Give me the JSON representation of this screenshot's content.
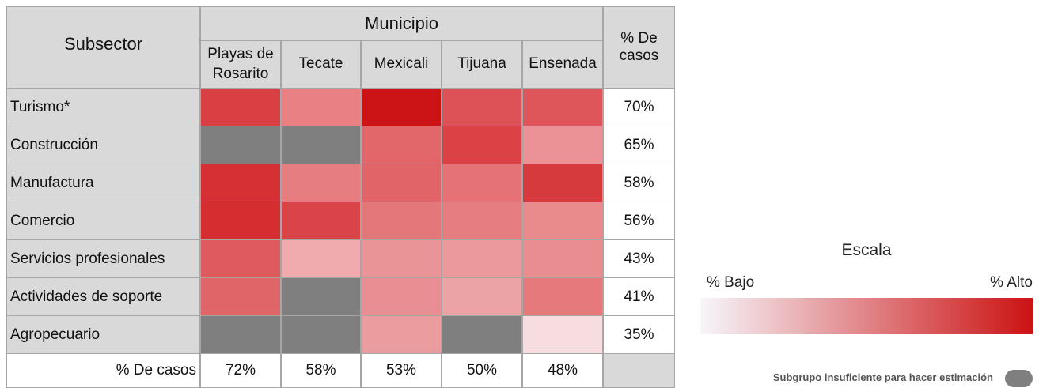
{
  "table": {
    "corner": "Subsector",
    "group_header": "Municipio",
    "total_header": "% De casos",
    "columns": [
      "Playas de Rosarito",
      "Tecate",
      "Mexicali",
      "Tijuana",
      "Ensenada"
    ],
    "rows": [
      {
        "label": "Turismo*",
        "colors": [
          "#d94044",
          "#e88084",
          "#cc1417",
          "#dc5257",
          "#de5659"
        ],
        "total": "70%"
      },
      {
        "label": "Construcción",
        "colors": [
          "#7f7f7f",
          "#7f7f7f",
          "#e2676b",
          "#da4246",
          "#ea9296"
        ],
        "total": "65%"
      },
      {
        "label": "Manufactura",
        "colors": [
          "#d63034",
          "#e67d80",
          "#e06468",
          "#e47276",
          "#d73a3d"
        ],
        "total": "58%"
      },
      {
        "label": "Comercio",
        "colors": [
          "#d62d31",
          "#da4347",
          "#e3777a",
          "#e67d80",
          "#e98a8c"
        ],
        "total": "56%"
      },
      {
        "label": "Servicios profesionales",
        "colors": [
          "#df5a5e",
          "#f0abae",
          "#e99497",
          "#ea999c",
          "#e98d90"
        ],
        "total": "43%"
      },
      {
        "label": "Actividades de soporte",
        "colors": [
          "#e06569",
          "#7f7f7f",
          "#e98e92",
          "#eca3a6",
          "#e5797c"
        ],
        "total": "41%"
      },
      {
        "label": "Agropecuario",
        "colors": [
          "#7f7f7f",
          "#7f7f7f",
          "#eb9c9f",
          "#7f7f7f",
          "#f8dde0"
        ],
        "total": "35%"
      }
    ],
    "footer": {
      "label": "% De casos",
      "values": [
        "72%",
        "58%",
        "53%",
        "50%",
        "48%"
      ]
    }
  },
  "legend": {
    "title": "Escala",
    "low": "% Bajo",
    "high": "% Alto",
    "low_color": "#f6f6fb",
    "high_color": "#cc1212",
    "note": "Subgrupo insuficiente para hacer estimación",
    "insufficient_color": "#7f7f7f"
  }
}
